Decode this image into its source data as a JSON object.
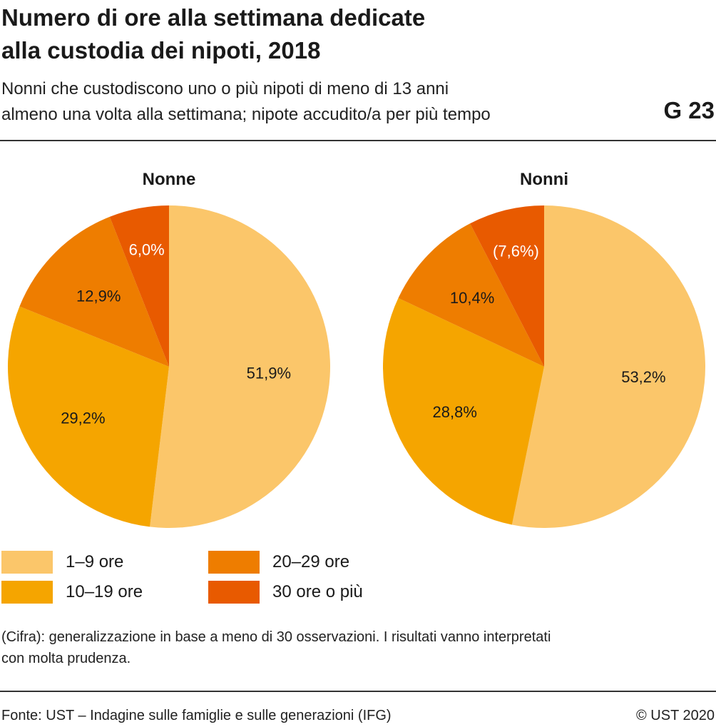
{
  "header": {
    "title_lines": [
      "Numero di ore alla settimana dedicate",
      "alla custodia dei nipoti, 2018"
    ],
    "subtitle_lines": [
      "Nonni che custodiscono uno o più nipoti di meno di 13 anni",
      "almeno una volta alla settimana; nipote accudito/a per più tempo"
    ],
    "code": "G 23"
  },
  "chart_data": {
    "type": "pie",
    "categories": [
      "1–9 ore",
      "10–19 ore",
      "20–29 ore",
      "30 ore o più"
    ],
    "colors": [
      "#fbc66a",
      "#f5a500",
      "#ee7d00",
      "#e85a00"
    ],
    "series": [
      {
        "name": "Nonne",
        "values": [
          51.9,
          29.2,
          12.9,
          6.0
        ],
        "labels": [
          "51,9%",
          "29,2%",
          "12,9%",
          "6,0%"
        ]
      },
      {
        "name": "Nonni",
        "values": [
          53.2,
          28.8,
          10.4,
          7.6
        ],
        "labels": [
          "53,2%",
          "28,8%",
          "10,4%",
          "(7,6%)"
        ]
      }
    ],
    "start_angle": "12 o'clock",
    "direction": "clockwise",
    "legend_position": "bottom-left"
  },
  "legend": {
    "items": [
      "1–9 ore",
      "10–19 ore",
      "20–29 ore",
      "30 ore o più"
    ]
  },
  "footnote": {
    "lines": [
      "(Cifra): generalizzazione in base a meno di 30 osservazioni. I risultati vanno interpretati",
      "con molta prudenza."
    ]
  },
  "footer": {
    "source": "Fonte: UST – Indagine sulle famiglie e sulle generazioni (IFG)",
    "copyright": "© UST 2020"
  }
}
